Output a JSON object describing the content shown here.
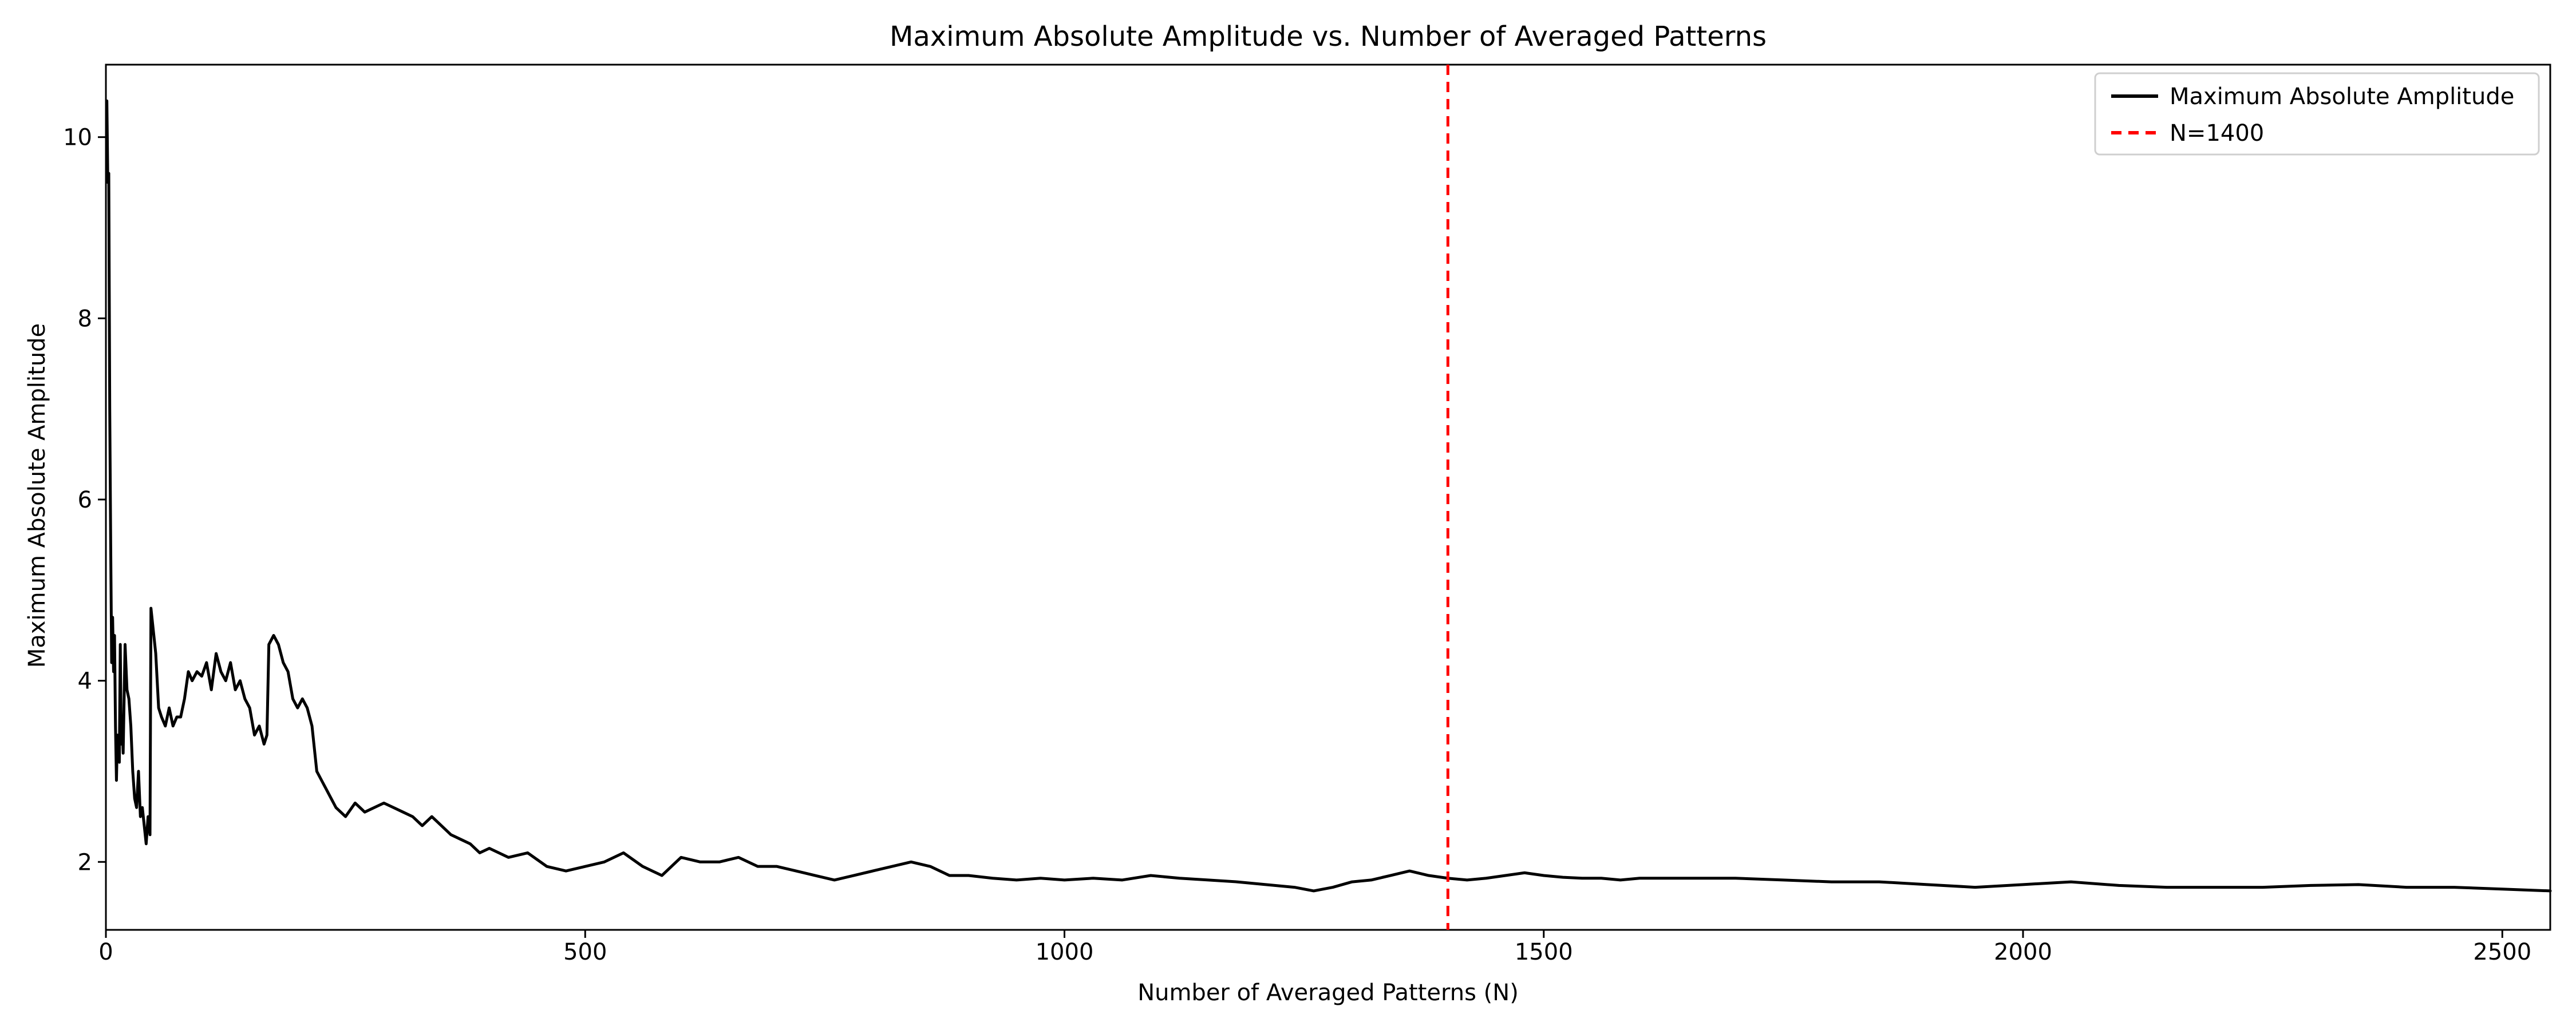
{
  "chart_data": {
    "type": "line",
    "title": "Maximum Absolute Amplitude vs. Number of Averaged Patterns",
    "xlabel": "Number of Averaged Patterns (N)",
    "ylabel": "Maximum Absolute Amplitude",
    "xlim": [
      0,
      2550
    ],
    "ylim": [
      1.25,
      10.8
    ],
    "x_ticks": [
      0,
      500,
      1000,
      1500,
      2000,
      2500
    ],
    "y_ticks": [
      2,
      4,
      6,
      8,
      10
    ],
    "grid": false,
    "legend_position": "top-right",
    "series": [
      {
        "name": "Maximum Absolute Amplitude",
        "color": "#000000",
        "style": "solid",
        "x": [
          1,
          2,
          3,
          4,
          5,
          6,
          7,
          8,
          9,
          10,
          11,
          12,
          13,
          14,
          15,
          16,
          17,
          18,
          20,
          22,
          24,
          26,
          28,
          30,
          32,
          34,
          36,
          38,
          40,
          42,
          44,
          46,
          47,
          48,
          50,
          52,
          55,
          58,
          62,
          66,
          70,
          74,
          78,
          82,
          86,
          90,
          95,
          100,
          105,
          110,
          115,
          120,
          125,
          130,
          135,
          140,
          145,
          150,
          155,
          160,
          165,
          168,
          170,
          175,
          180,
          185,
          190,
          195,
          200,
          205,
          210,
          215,
          220,
          225,
          230,
          240,
          250,
          260,
          270,
          280,
          290,
          300,
          310,
          320,
          330,
          340,
          350,
          360,
          370,
          380,
          390,
          400,
          420,
          440,
          460,
          480,
          500,
          520,
          540,
          560,
          580,
          600,
          620,
          640,
          660,
          680,
          700,
          720,
          740,
          760,
          780,
          800,
          820,
          840,
          860,
          880,
          900,
          925,
          950,
          975,
          1000,
          1030,
          1060,
          1090,
          1120,
          1150,
          1180,
          1210,
          1240,
          1260,
          1280,
          1300,
          1320,
          1340,
          1360,
          1380,
          1400,
          1420,
          1440,
          1460,
          1480,
          1500,
          1520,
          1540,
          1560,
          1580,
          1600,
          1650,
          1700,
          1750,
          1800,
          1850,
          1900,
          1950,
          2000,
          2050,
          2100,
          2150,
          2200,
          2250,
          2300,
          2350,
          2400,
          2450,
          2500,
          2550
        ],
        "y": [
          10.4,
          9.5,
          9.6,
          7.0,
          5.5,
          4.2,
          4.7,
          4.1,
          4.5,
          3.5,
          2.9,
          3.4,
          3.2,
          3.1,
          4.4,
          3.3,
          3.5,
          3.2,
          4.4,
          3.9,
          3.8,
          3.5,
          3.0,
          2.7,
          2.6,
          3.0,
          2.5,
          2.6,
          2.4,
          2.2,
          2.5,
          2.3,
          4.8,
          4.7,
          4.5,
          4.3,
          3.7,
          3.6,
          3.5,
          3.7,
          3.5,
          3.6,
          3.6,
          3.8,
          4.1,
          4.0,
          4.1,
          4.05,
          4.2,
          3.9,
          4.3,
          4.1,
          4.0,
          4.2,
          3.9,
          4.0,
          3.8,
          3.7,
          3.4,
          3.5,
          3.3,
          3.4,
          4.4,
          4.5,
          4.4,
          4.2,
          4.1,
          3.8,
          3.7,
          3.8,
          3.7,
          3.5,
          3.0,
          2.9,
          2.8,
          2.6,
          2.5,
          2.65,
          2.55,
          2.6,
          2.65,
          2.6,
          2.55,
          2.5,
          2.4,
          2.5,
          2.4,
          2.3,
          2.25,
          2.2,
          2.1,
          2.15,
          2.05,
          2.1,
          1.95,
          1.9,
          1.95,
          2.0,
          2.1,
          1.95,
          1.85,
          2.05,
          2.0,
          2.0,
          2.05,
          1.95,
          1.95,
          1.9,
          1.85,
          1.8,
          1.85,
          1.9,
          1.95,
          2.0,
          1.95,
          1.85,
          1.85,
          1.82,
          1.8,
          1.82,
          1.8,
          1.82,
          1.8,
          1.85,
          1.82,
          1.8,
          1.78,
          1.75,
          1.72,
          1.68,
          1.72,
          1.78,
          1.8,
          1.85,
          1.9,
          1.85,
          1.82,
          1.8,
          1.82,
          1.85,
          1.88,
          1.85,
          1.83,
          1.82,
          1.82,
          1.8,
          1.82,
          1.82,
          1.82,
          1.8,
          1.78,
          1.78,
          1.75,
          1.72,
          1.75,
          1.78,
          1.74,
          1.72,
          1.72,
          1.72,
          1.74,
          1.75,
          1.72,
          1.72,
          1.7,
          1.68
        ]
      },
      {
        "name": "N=1400",
        "color": "#ff0000",
        "style": "dashed",
        "x_value": 1400
      }
    ]
  }
}
